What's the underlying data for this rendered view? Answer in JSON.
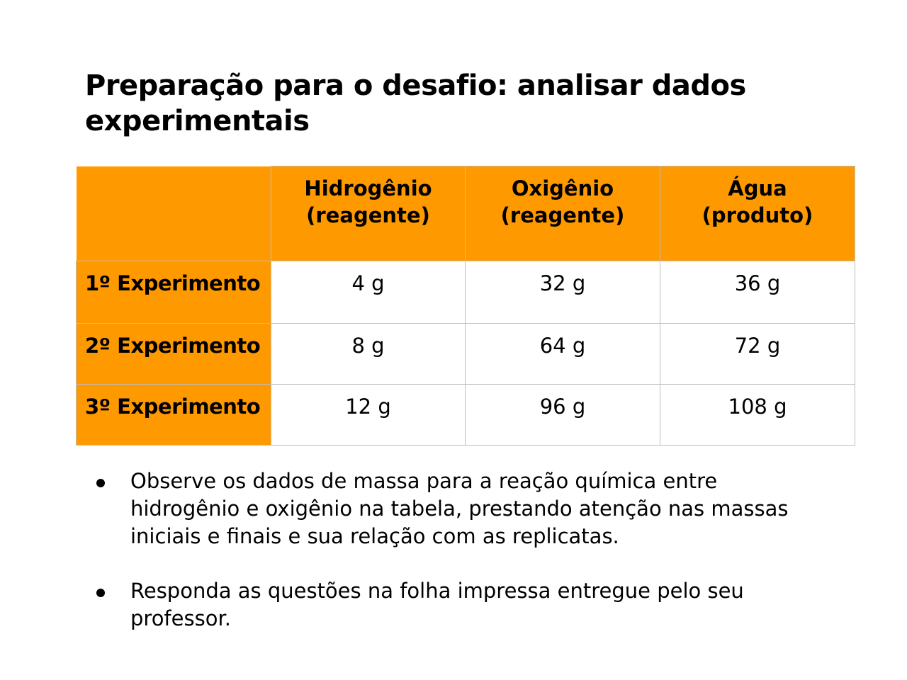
{
  "slide": {
    "title": "Preparação para o desafio: analisar dados experimentais"
  },
  "table": {
    "headers": [
      {
        "line1": "Hidrogênio",
        "line2": "(reagente)"
      },
      {
        "line1": "Oxigênio",
        "line2": "(reagente)"
      },
      {
        "line1": "Água",
        "line2": "(produto)"
      }
    ],
    "rows": [
      {
        "label": "1º Experimento",
        "values": [
          "4 g",
          "32 g",
          "36 g"
        ]
      },
      {
        "label": "2º Experimento",
        "values": [
          "8 g",
          "64 g",
          "72 g"
        ]
      },
      {
        "label": "3º Experimento",
        "values": [
          "12 g",
          "96 g",
          "108 g"
        ]
      }
    ],
    "header_color": "#ff9900",
    "border_color": "#bdbdbd"
  },
  "bullets": [
    "Observe os dados de massa para a reação química entre hidrogênio e oxigênio na tabela, prestando atenção nas massas iniciais e finais e sua relação com as replicatas.",
    "Responda as questões na folha impressa entregue pelo seu professor."
  ]
}
